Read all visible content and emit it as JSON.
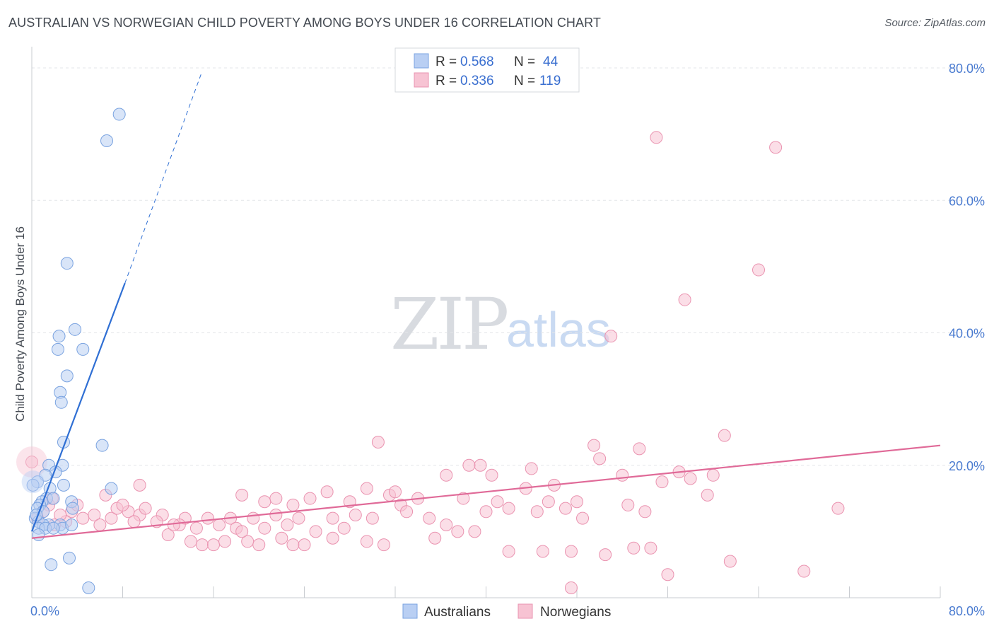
{
  "header": {
    "title": "AUSTRALIAN VS NORWEGIAN CHILD POVERTY AMONG BOYS UNDER 16 CORRELATION CHART",
    "source": "Source: ZipAtlas.com"
  },
  "watermark": {
    "zip": "ZIP",
    "atlas": "atlas"
  },
  "legend": {
    "australians": {
      "r_label": "R = ",
      "r_value": "0.568",
      "n_label": "N = ",
      "n_value": "44"
    },
    "norwegians": {
      "r_label": "R = ",
      "r_value": "0.336",
      "n_label": "N = ",
      "n_value": "119"
    }
  },
  "colors": {
    "blue_fill": "#b9cff3",
    "blue_stroke": "#7aa3e0",
    "blue_line": "#2f6fd4",
    "pink_fill": "#f7c3d3",
    "pink_stroke": "#ea93b0",
    "pink_line": "#e06a98",
    "grid": "#e3e5e8",
    "axis": "#c9ccd1",
    "tick_text": "#4a7bd0"
  },
  "chart_data": {
    "type": "scatter",
    "title": "AUSTRALIAN VS NORWEGIAN CHILD POVERTY AMONG BOYS UNDER 16 CORRELATION CHART",
    "xlabel": "",
    "ylabel": "Child Poverty Among Boys Under 16",
    "xlim": [
      0,
      80
    ],
    "ylim": [
      0,
      80
    ],
    "x_tick_labels": [
      "0.0%",
      "80.0%"
    ],
    "y_ticks": [
      20,
      40,
      60,
      80
    ],
    "y_tick_labels": [
      "20.0%",
      "40.0%",
      "60.0%",
      "80.0%"
    ],
    "grid": true,
    "legend_position": "top-center",
    "series": [
      {
        "name": "Australians",
        "r": 0.568,
        "n": 44,
        "trend": {
          "x0": 0.0,
          "y0": 10.0,
          "x1": 8.2,
          "y1": 47.5,
          "dash_x1": 15.0,
          "dash_y1": 79.5
        },
        "points": [
          [
            7.7,
            73.0
          ],
          [
            6.6,
            69.0
          ],
          [
            3.1,
            50.5
          ],
          [
            3.8,
            40.5
          ],
          [
            2.4,
            39.5
          ],
          [
            4.5,
            37.5
          ],
          [
            2.3,
            37.5
          ],
          [
            3.1,
            33.5
          ],
          [
            2.5,
            31.0
          ],
          [
            2.6,
            29.5
          ],
          [
            2.8,
            23.5
          ],
          [
            6.2,
            23.0
          ],
          [
            1.5,
            20.0
          ],
          [
            2.7,
            20.0
          ],
          [
            2.1,
            19.0
          ],
          [
            1.2,
            18.5
          ],
          [
            0.5,
            17.5
          ],
          [
            7.0,
            16.5
          ],
          [
            2.8,
            17.0
          ],
          [
            1.6,
            16.5
          ],
          [
            1.3,
            15.0
          ],
          [
            1.9,
            15.0
          ],
          [
            0.9,
            14.5
          ],
          [
            3.5,
            14.5
          ],
          [
            0.7,
            14.0
          ],
          [
            0.5,
            13.5
          ],
          [
            3.6,
            13.5
          ],
          [
            1.0,
            13.0
          ],
          [
            0.3,
            12.0
          ],
          [
            0.6,
            11.5
          ],
          [
            2.5,
            11.0
          ],
          [
            1.5,
            11.0
          ],
          [
            1.0,
            11.0
          ],
          [
            0.6,
            10.5
          ],
          [
            2.7,
            10.5
          ],
          [
            1.2,
            10.5
          ],
          [
            3.5,
            11.0
          ],
          [
            1.9,
            10.5
          ],
          [
            0.6,
            9.5
          ],
          [
            3.3,
            6.0
          ],
          [
            1.7,
            5.0
          ],
          [
            5.0,
            1.5
          ],
          [
            0.1,
            17.0
          ],
          [
            0.4,
            12.5
          ]
        ]
      },
      {
        "name": "Norwegians",
        "r": 0.336,
        "n": 119,
        "trend": {
          "x0": 0.0,
          "y0": 9.0,
          "x1": 80.0,
          "y1": 23.0
        },
        "points": [
          [
            55.0,
            69.5
          ],
          [
            65.5,
            68.0
          ],
          [
            64.0,
            49.5
          ],
          [
            57.5,
            45.0
          ],
          [
            51.0,
            39.5
          ],
          [
            30.5,
            23.5
          ],
          [
            49.5,
            23.0
          ],
          [
            53.5,
            22.5
          ],
          [
            61.0,
            24.5
          ],
          [
            39.5,
            20.0
          ],
          [
            50.0,
            21.0
          ],
          [
            44.0,
            19.5
          ],
          [
            38.5,
            20.0
          ],
          [
            36.5,
            18.5
          ],
          [
            40.5,
            18.5
          ],
          [
            52.0,
            18.5
          ],
          [
            58.0,
            18.0
          ],
          [
            55.5,
            17.5
          ],
          [
            46.0,
            17.0
          ],
          [
            43.5,
            16.5
          ],
          [
            29.5,
            16.5
          ],
          [
            26.0,
            16.0
          ],
          [
            31.5,
            15.5
          ],
          [
            18.5,
            15.5
          ],
          [
            21.5,
            15.0
          ],
          [
            38.0,
            15.0
          ],
          [
            41.0,
            14.5
          ],
          [
            45.5,
            14.5
          ],
          [
            48.0,
            14.5
          ],
          [
            24.5,
            15.0
          ],
          [
            28.0,
            14.5
          ],
          [
            20.5,
            14.5
          ],
          [
            23.0,
            14.0
          ],
          [
            32.5,
            14.0
          ],
          [
            42.0,
            13.5
          ],
          [
            47.0,
            13.5
          ],
          [
            44.5,
            13.0
          ],
          [
            54.0,
            13.0
          ],
          [
            8.5,
            13.0
          ],
          [
            9.5,
            12.5
          ],
          [
            11.5,
            12.5
          ],
          [
            13.5,
            12.0
          ],
          [
            15.5,
            12.0
          ],
          [
            17.5,
            12.0
          ],
          [
            19.5,
            12.0
          ],
          [
            21.5,
            12.5
          ],
          [
            23.5,
            12.0
          ],
          [
            26.5,
            12.0
          ],
          [
            28.5,
            12.5
          ],
          [
            30.0,
            12.0
          ],
          [
            33.0,
            13.0
          ],
          [
            35.0,
            12.0
          ],
          [
            36.5,
            11.0
          ],
          [
            3.5,
            13.0
          ],
          [
            5.5,
            12.5
          ],
          [
            7.0,
            12.0
          ],
          [
            9.0,
            11.5
          ],
          [
            11.0,
            11.5
          ],
          [
            13.0,
            11.0
          ],
          [
            16.5,
            11.0
          ],
          [
            18.0,
            10.5
          ],
          [
            20.5,
            10.5
          ],
          [
            22.5,
            11.0
          ],
          [
            25.0,
            10.0
          ],
          [
            27.5,
            10.5
          ],
          [
            12.0,
            9.5
          ],
          [
            14.0,
            8.5
          ],
          [
            15.0,
            8.0
          ],
          [
            16.0,
            8.0
          ],
          [
            17.0,
            8.5
          ],
          [
            19.0,
            8.5
          ],
          [
            20.0,
            8.0
          ],
          [
            18.5,
            10.0
          ],
          [
            14.5,
            10.5
          ],
          [
            22.0,
            9.0
          ],
          [
            23.0,
            8.0
          ],
          [
            24.0,
            8.0
          ],
          [
            26.5,
            9.0
          ],
          [
            29.5,
            8.5
          ],
          [
            31.0,
            8.0
          ],
          [
            35.5,
            9.0
          ],
          [
            37.5,
            10.0
          ],
          [
            39.0,
            10.0
          ],
          [
            42.0,
            7.0
          ],
          [
            45.0,
            7.0
          ],
          [
            47.5,
            7.0
          ],
          [
            50.5,
            6.5
          ],
          [
            53.0,
            7.5
          ],
          [
            54.5,
            7.5
          ],
          [
            59.5,
            15.5
          ],
          [
            60.0,
            18.5
          ],
          [
            57.0,
            19.0
          ],
          [
            52.5,
            14.0
          ],
          [
            48.5,
            12.0
          ],
          [
            61.5,
            5.5
          ],
          [
            68.0,
            4.0
          ],
          [
            56.0,
            3.5
          ],
          [
            47.5,
            1.5
          ],
          [
            71.0,
            13.5
          ],
          [
            1.5,
            14.0
          ],
          [
            2.0,
            11.0
          ],
          [
            3.0,
            11.5
          ],
          [
            4.5,
            12.0
          ],
          [
            6.0,
            11.0
          ],
          [
            7.5,
            13.5
          ],
          [
            10.0,
            13.5
          ],
          [
            12.5,
            11.0
          ],
          [
            1.0,
            13.0
          ],
          [
            0.5,
            12.0
          ],
          [
            2.5,
            12.5
          ],
          [
            9.5,
            17.0
          ],
          [
            6.5,
            15.5
          ],
          [
            32.0,
            16.0
          ],
          [
            34.0,
            15.0
          ],
          [
            40.0,
            13.0
          ],
          [
            0.0,
            20.5
          ],
          [
            1.8,
            15.0
          ],
          [
            4.0,
            14.0
          ],
          [
            8.0,
            14.0
          ]
        ]
      }
    ]
  },
  "bottom_legend": {
    "australians": "Australians",
    "norwegians": "Norwegians"
  }
}
